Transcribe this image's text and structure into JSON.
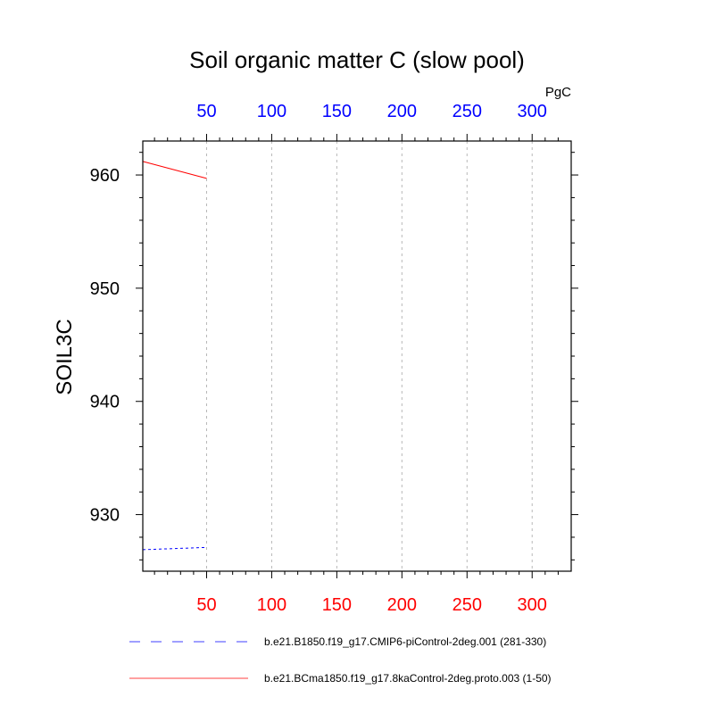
{
  "chart_data": {
    "type": "line",
    "title": "Soil organic matter C (slow pool)",
    "ylabel": "SOIL3C",
    "units_label": "PgC",
    "xlim": [
      1,
      330
    ],
    "ylim": [
      925,
      963
    ],
    "x_ticks": [
      50,
      100,
      150,
      200,
      250,
      300
    ],
    "y_ticks": [
      930,
      940,
      950,
      960
    ],
    "top_axis_color": "#0000ff",
    "bottom_axis_color": "#ff0000",
    "grid": "vertical dashed gray",
    "legend_position": "bottom",
    "series": [
      {
        "name": "b.e21.B1850.f19_g17.CMIP6-piControl-2deg.001 (281-330)",
        "color": "#0000ff",
        "dash": "dashed",
        "x": [
          1,
          50
        ],
        "y": [
          926.9,
          927.1
        ]
      },
      {
        "name": "b.e21.BCma1850.f19_g17.8kaControl-2deg.proto.003 (1-50)",
        "color": "#ff0000",
        "dash": "solid",
        "x": [
          1,
          50
        ],
        "y": [
          961.2,
          959.7
        ]
      }
    ]
  }
}
